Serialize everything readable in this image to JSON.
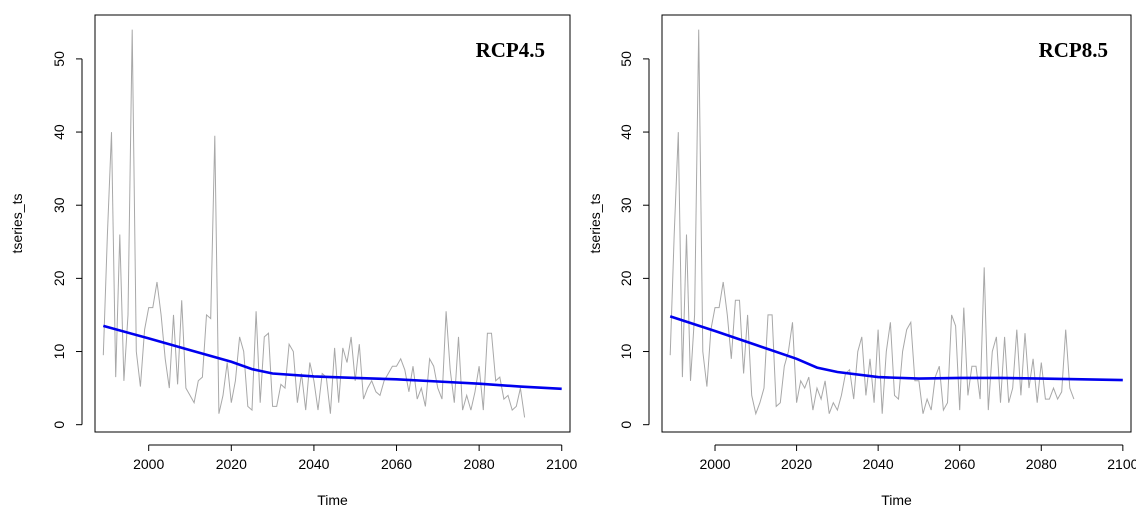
{
  "chart_data": [
    {
      "type": "line",
      "title": "RCP4.5",
      "xlabel": "Time",
      "ylabel": "tseries_ts",
      "xlim": [
        1987,
        2102
      ],
      "ylim": [
        -1,
        56
      ],
      "xticks": [
        2000,
        2020,
        2040,
        2060,
        2080,
        2100
      ],
      "yticks": [
        0,
        10,
        20,
        30,
        40,
        50
      ],
      "grid": false,
      "colors": {
        "raw": "#a8a8a8",
        "trend": "#0000ee"
      },
      "series": [
        {
          "role": "raw",
          "x_start": 1989,
          "x_step": 1,
          "values": [
            9.5,
            26,
            40,
            6.5,
            26,
            6,
            15,
            54,
            10,
            5.2,
            13,
            16,
            16,
            19.5,
            15,
            9,
            5,
            15,
            5.5,
            17,
            5,
            4,
            3,
            6,
            6.5,
            15,
            14.5,
            39.5,
            1.5,
            4,
            8.5,
            3,
            6,
            12,
            10,
            2.5,
            2,
            15.5,
            3,
            12,
            12.5,
            2.5,
            2.5,
            5.5,
            5,
            11,
            10,
            3,
            7,
            2,
            8.5,
            6,
            2,
            7,
            6.5,
            1.5,
            10.5,
            3,
            10.5,
            8.5,
            12,
            6,
            11,
            3.5,
            5,
            6,
            4.5,
            4,
            6,
            7,
            8,
            8,
            9,
            7.5,
            4.5,
            8,
            3.5,
            5,
            2.5,
            9,
            8,
            5,
            3.5,
            15.5,
            7.5,
            3,
            12,
            2,
            4,
            2,
            4.5,
            8,
            2,
            12.5,
            12.5,
            6,
            6.5,
            3.5,
            4,
            2,
            2.5,
            5,
            1
          ]
        },
        {
          "role": "trend",
          "x": [
            1989,
            2000,
            2010,
            2020,
            2025,
            2030,
            2040,
            2050,
            2060,
            2070,
            2080,
            2090,
            2100
          ],
          "values": [
            13.5,
            11.8,
            10.2,
            8.6,
            7.6,
            7.0,
            6.6,
            6.4,
            6.2,
            5.9,
            5.6,
            5.2,
            4.9
          ]
        }
      ]
    },
    {
      "type": "line",
      "title": "RCP8.5",
      "xlabel": "Time",
      "ylabel": "tseries_ts",
      "xlim": [
        1987,
        2102
      ],
      "ylim": [
        -1,
        56
      ],
      "xticks": [
        2000,
        2020,
        2040,
        2060,
        2080,
        2100
      ],
      "yticks": [
        0,
        10,
        20,
        30,
        40,
        50
      ],
      "grid": false,
      "colors": {
        "raw": "#a8a8a8",
        "trend": "#0000ee"
      },
      "series": [
        {
          "role": "raw",
          "x_start": 1989,
          "x_step": 1,
          "values": [
            9.5,
            26,
            40,
            6.5,
            26,
            6,
            15,
            54,
            10,
            5.2,
            13,
            16,
            16,
            19.5,
            15,
            9,
            17,
            17,
            7,
            15,
            4,
            1.5,
            3,
            5,
            15,
            15,
            2.5,
            3,
            8,
            10,
            14,
            3,
            6,
            5,
            6.5,
            2,
            5,
            3.5,
            6,
            1.5,
            3,
            2,
            4,
            7,
            7.5,
            3.5,
            10,
            12,
            4,
            9,
            3,
            13,
            1.5,
            10,
            14,
            4,
            3.5,
            10,
            13,
            14,
            6,
            6,
            1.5,
            3.5,
            2,
            6.5,
            8,
            2,
            3,
            15,
            13.5,
            2,
            16,
            4,
            8,
            8,
            3.5,
            21.5,
            2,
            10,
            12,
            3,
            12,
            3,
            5,
            13,
            4,
            12.5,
            5,
            9,
            3,
            8.5,
            3.5,
            3.5,
            5,
            3.5,
            4.5,
            13,
            5,
            3.5
          ]
        },
        {
          "role": "trend",
          "x": [
            1989,
            2000,
            2010,
            2020,
            2025,
            2030,
            2040,
            2050,
            2060,
            2070,
            2080,
            2090,
            2100
          ],
          "values": [
            14.8,
            12.8,
            10.9,
            9.0,
            7.8,
            7.2,
            6.5,
            6.3,
            6.4,
            6.4,
            6.3,
            6.2,
            6.1
          ]
        }
      ]
    }
  ]
}
